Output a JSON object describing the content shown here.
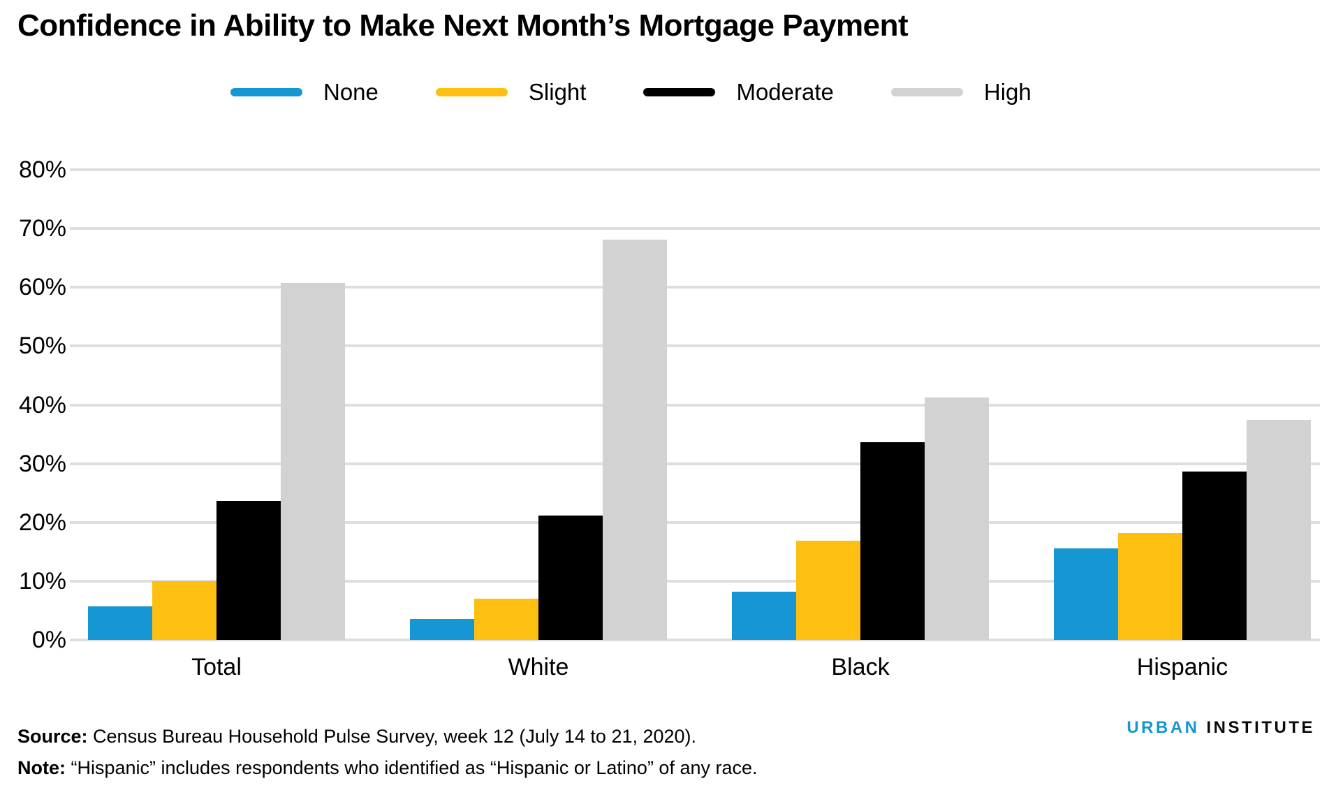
{
  "title": "Confidence in Ability to Make Next Month’s Mortgage Payment",
  "legend": {
    "items": [
      {
        "label": "None",
        "color": "#1696d2"
      },
      {
        "label": "Slight",
        "color": "#fdbf11"
      },
      {
        "label": "Moderate",
        "color": "#000000"
      },
      {
        "label": "High",
        "color": "#d2d2d2"
      }
    ]
  },
  "y_axis": {
    "ticks_bottom_up": [
      "0%",
      "10%",
      "20%",
      "30%",
      "40%",
      "50%",
      "60%",
      "70%",
      "80%"
    ],
    "max": 80
  },
  "chart_data": {
    "type": "bar",
    "title": "Confidence in Ability to Make Next Month’s Mortgage Payment",
    "categories": [
      "Total",
      "White",
      "Black",
      "Hispanic"
    ],
    "series": [
      {
        "name": "None",
        "color": "#1696d2",
        "values": [
          5.7,
          3.6,
          8.2,
          15.6
        ]
      },
      {
        "name": "Slight",
        "color": "#fdbf11",
        "values": [
          10.0,
          7.0,
          16.9,
          18.2
        ]
      },
      {
        "name": "Moderate",
        "color": "#000000",
        "values": [
          23.6,
          21.2,
          33.6,
          28.7
        ]
      },
      {
        "name": "High",
        "color": "#d2d2d2",
        "values": [
          60.8,
          68.1,
          41.3,
          37.4
        ]
      }
    ],
    "xlabel": "",
    "ylabel": "",
    "ylim": [
      0,
      80
    ],
    "grid": true,
    "gridline_color": "#dedede",
    "legend_position": "top"
  },
  "footer": {
    "source_label": "Source:",
    "source_text": " Census Bureau Household Pulse Survey, week 12 (July 14 to 21, 2020).",
    "note_label": "Note:",
    "note_text": " “Hispanic” includes respondents who identified as “Hispanic or Latino” of any race."
  },
  "brand": {
    "first_word": "URBAN",
    "second_word": "INSTITUTE"
  }
}
